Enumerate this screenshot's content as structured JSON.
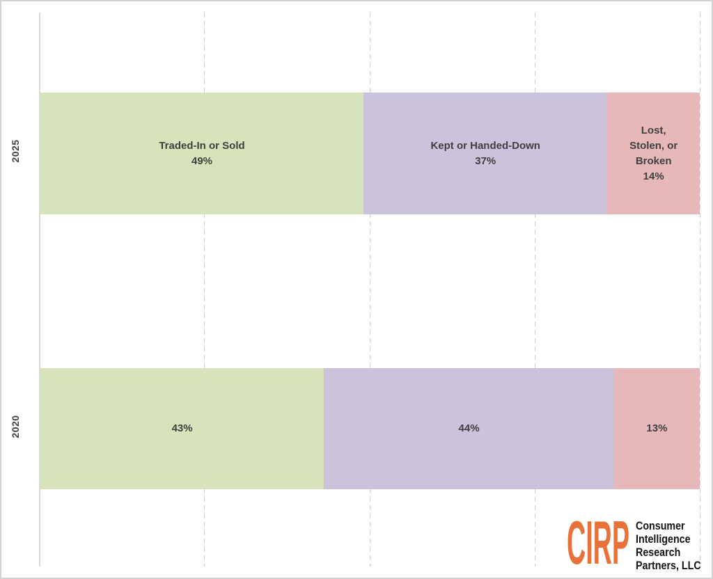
{
  "page": {
    "background": "#ffffff",
    "border_color": "#d2d2d2",
    "gridline_color": "#cdcdcd",
    "axis_color": "#d9d9d9"
  },
  "chart_data": {
    "type": "bar",
    "orientation": "horizontal",
    "stacked": true,
    "xlim": [
      0,
      100
    ],
    "grid": "vertical dashed",
    "gridline_positions_pct": [
      25,
      50,
      75,
      100
    ],
    "label_color": "#3f3f3f",
    "categories": [
      "2025",
      "2020"
    ],
    "series": [
      {
        "name": "Traded-In or Sold",
        "color": "#d7e3ba",
        "values": [
          49,
          43
        ]
      },
      {
        "name": "Kept or Handed-Down",
        "color": "#cbc2dc",
        "values": [
          37,
          44
        ]
      },
      {
        "name": "Lost, Stolen, or Broken",
        "color": "#e7b8ba",
        "values": [
          14,
          13
        ]
      }
    ],
    "bars": [
      {
        "category": "2025",
        "segments": [
          {
            "series": "Traded-In or Sold",
            "value_pct": 49,
            "color": "#d7e3ba",
            "lines": [
              "Traded-In or Sold",
              "49%"
            ]
          },
          {
            "series": "Kept or Handed-Down",
            "value_pct": 37,
            "color": "#cbc2dc",
            "lines": [
              "Kept or Handed-Down",
              "37%"
            ]
          },
          {
            "series": "Lost, Stolen, or Broken",
            "value_pct": 14,
            "color": "#e7b8ba",
            "lines": [
              "Lost,",
              "Stolen, or",
              "Broken",
              "14%"
            ]
          }
        ]
      },
      {
        "category": "2020",
        "segments": [
          {
            "series": "Traded-In or Sold",
            "value_pct": 43,
            "color": "#d7e3ba",
            "lines": [
              "43%"
            ]
          },
          {
            "series": "Kept or Handed-Down",
            "value_pct": 44,
            "color": "#cbc2dc",
            "lines": [
              "44%"
            ]
          },
          {
            "series": "Lost, Stolen, or Broken",
            "value_pct": 13,
            "color": "#e7b8ba",
            "lines": [
              "13%"
            ]
          }
        ]
      }
    ]
  },
  "logo": {
    "brand": "CIRP",
    "brand_color": "#e9713a",
    "text_color": "#151515",
    "lines": [
      "Consumer",
      "Intelligence",
      "Research",
      "Partners, LLC"
    ]
  }
}
